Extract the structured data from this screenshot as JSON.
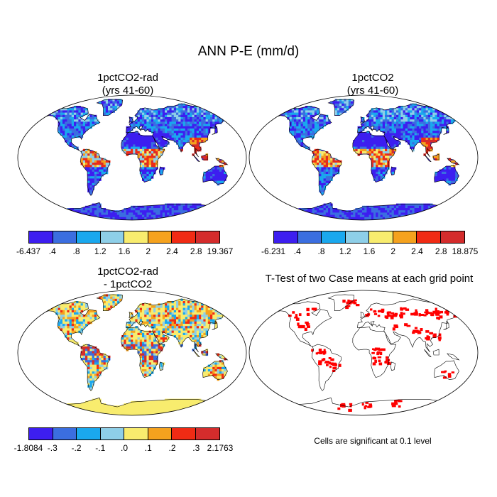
{
  "title": "ANN P-E (mm/d)",
  "panels": [
    {
      "title_line1": "1pctCO2-rad",
      "title_line2": "(yrs 41-60)"
    },
    {
      "title_line1": "1pctCO2",
      "title_line2": "(yrs 41-60)"
    },
    {
      "title_line1": "1pctCO2-rad",
      "title_line2": "- 1pctCO2"
    },
    {
      "title_line1": "T-Test of two Case means at each grid point",
      "title_line2": ""
    }
  ],
  "colorbars": [
    {
      "labels": [
        "-6.437",
        ".4",
        ".8",
        "1.2",
        "1.6",
        "2",
        "2.4",
        "2.8",
        "19.367"
      ]
    },
    {
      "labels": [
        "-6.231",
        ".4",
        ".8",
        "1.2",
        "1.6",
        "2",
        "2.4",
        "2.8",
        "18.875"
      ]
    },
    {
      "labels": [
        "-1.8084",
        "-.3",
        "-.2",
        "-.1",
        ".0",
        ".1",
        ".2",
        ".3",
        "2.1763"
      ]
    }
  ],
  "colors": [
    "#3d1ef0",
    "#3b6ee0",
    "#1aa8ee",
    "#8ecfe8",
    "#f8ec6e",
    "#f5a21e",
    "#f02b14",
    "#d42c2c"
  ],
  "significance_color": "#ff0000",
  "note": "Cells are significant at 0.1 level"
}
